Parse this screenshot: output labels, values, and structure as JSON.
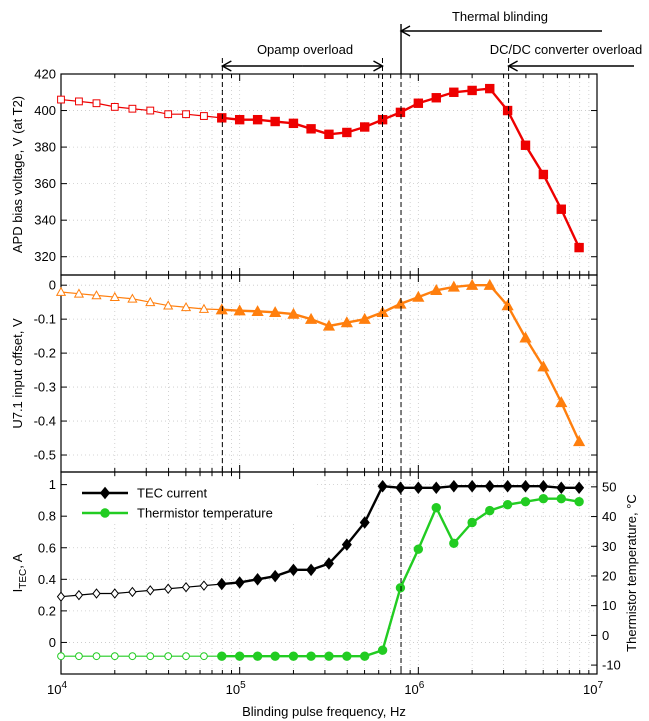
{
  "chart_data": {
    "type": "line",
    "xlabel": "Blinding pulse frequency, Hz",
    "x_scale": "log",
    "xlim": [
      10000,
      10000000
    ],
    "x_tick_labels": [
      "10^4",
      "10^5",
      "10^6",
      "10^7"
    ],
    "grid": true,
    "annotations": {
      "thermal_blinding": {
        "label": "Thermal blinding",
        "x_start": 800000
      },
      "opamp_overload": {
        "label": "Opamp overload",
        "x_range": [
          80000,
          630000
        ]
      },
      "dcdc_overload": {
        "label": "DC/DC converter overload",
        "x_start": 3200000
      }
    },
    "panels": [
      {
        "ylabel": "APD bias voltage, V (at T2)",
        "ylim": [
          310,
          420
        ],
        "y_ticks": [
          320,
          340,
          360,
          380,
          400,
          420
        ],
        "series": [
          {
            "color": "#ee0000",
            "marker": "square",
            "x": [
              10000,
              12600,
              15800,
              20000,
              25100,
              31600,
              39800,
              50100,
              63100,
              79400,
              100000,
              126000,
              158000,
              200000,
              251000,
              316000,
              398000,
              501000,
              631000,
              794000,
              1000000,
              1260000,
              1580000,
              2000000,
              2510000,
              3160000,
              3980000,
              5010000,
              6310000,
              7940000
            ],
            "y": [
              406,
              405,
              404,
              402,
              401,
              400,
              398,
              398,
              397,
              396,
              395,
              395,
              394,
              393,
              390,
              387,
              388,
              391,
              395,
              399,
              404,
              407,
              410,
              411,
              412,
              400,
              381,
              365,
              346,
              325
            ],
            "filled_from_x": 79400
          }
        ]
      },
      {
        "ylabel": "U7.1 input offset, V",
        "ylim": [
          -0.55,
          0.03
        ],
        "y_ticks": [
          "0",
          "-0.1",
          "-0.2",
          "-0.3",
          "-0.4",
          "-0.5"
        ],
        "series": [
          {
            "color": "#ff7f0e",
            "marker": "triangle",
            "x": [
              10000,
              12600,
              15800,
              20000,
              25100,
              31600,
              39800,
              50100,
              63100,
              79400,
              100000,
              126000,
              158000,
              200000,
              251000,
              316000,
              398000,
              501000,
              631000,
              794000,
              1000000,
              1260000,
              1580000,
              2000000,
              2510000,
              3160000,
              3980000,
              5010000,
              6310000,
              7940000
            ],
            "y": [
              -0.02,
              -0.025,
              -0.03,
              -0.035,
              -0.04,
              -0.05,
              -0.06,
              -0.065,
              -0.07,
              -0.072,
              -0.075,
              -0.077,
              -0.08,
              -0.085,
              -0.1,
              -0.12,
              -0.11,
              -0.1,
              -0.08,
              -0.055,
              -0.035,
              -0.015,
              -0.005,
              0.0,
              0.0,
              -0.06,
              -0.155,
              -0.24,
              -0.345,
              -0.46
            ],
            "filled_from_x": 79400
          }
        ]
      },
      {
        "ylabel": "I_TEC, A",
        "ylabel_main": "I",
        "ylabel_sub": "TEC",
        "ylabel_rest": ", A",
        "ylim": [
          -0.2,
          1.08
        ],
        "y_ticks": [
          "1",
          "0.8",
          "0.6",
          "0.4",
          "0.2",
          "0"
        ],
        "y2label": "Thermistor temperature, °C",
        "y2lim": [
          -13,
          55
        ],
        "y2_ticks": [
          "50",
          "40",
          "30",
          "20",
          "10",
          "0",
          "-10"
        ],
        "legend": {
          "placement": "top-left",
          "entries": [
            "TEC current",
            "Thermistor temperature"
          ]
        },
        "series": [
          {
            "name": "TEC current",
            "axis": "left",
            "color": "#000000",
            "marker": "diamond",
            "x": [
              10000,
              12600,
              15800,
              20000,
              25100,
              31600,
              39800,
              50100,
              63100,
              79400,
              100000,
              126000,
              158000,
              200000,
              251000,
              316000,
              398000,
              501000,
              631000,
              794000,
              1000000,
              1260000,
              1580000,
              2000000,
              2510000,
              3160000,
              3980000,
              5010000,
              6310000,
              7940000
            ],
            "y": [
              0.29,
              0.3,
              0.31,
              0.31,
              0.32,
              0.33,
              0.34,
              0.35,
              0.36,
              0.37,
              0.38,
              0.4,
              0.42,
              0.46,
              0.46,
              0.5,
              0.62,
              0.76,
              0.99,
              0.98,
              0.98,
              0.98,
              0.99,
              0.99,
              0.99,
              0.99,
              0.99,
              0.99,
              0.98,
              0.98
            ],
            "filled_from_x": 79400
          },
          {
            "name": "Thermistor temperature",
            "axis": "right",
            "color": "#22cc22",
            "marker": "circle",
            "x": [
              10000,
              12600,
              15800,
              20000,
              25100,
              31600,
              39800,
              50100,
              63100,
              79400,
              100000,
              126000,
              158000,
              200000,
              251000,
              316000,
              398000,
              501000,
              631000,
              794000,
              1000000,
              1260000,
              1580000,
              2000000,
              2510000,
              3160000,
              3980000,
              5010000,
              6310000,
              7940000
            ],
            "y": [
              -7,
              -7,
              -7,
              -7,
              -7,
              -7,
              -7,
              -7,
              -7,
              -7,
              -7,
              -7,
              -7,
              -7,
              -7,
              -7,
              -7,
              -7,
              -5,
              16,
              29,
              43,
              31,
              38,
              42,
              44,
              45,
              46,
              46,
              45
            ],
            "filled_from_x": 79400
          }
        ]
      }
    ]
  }
}
